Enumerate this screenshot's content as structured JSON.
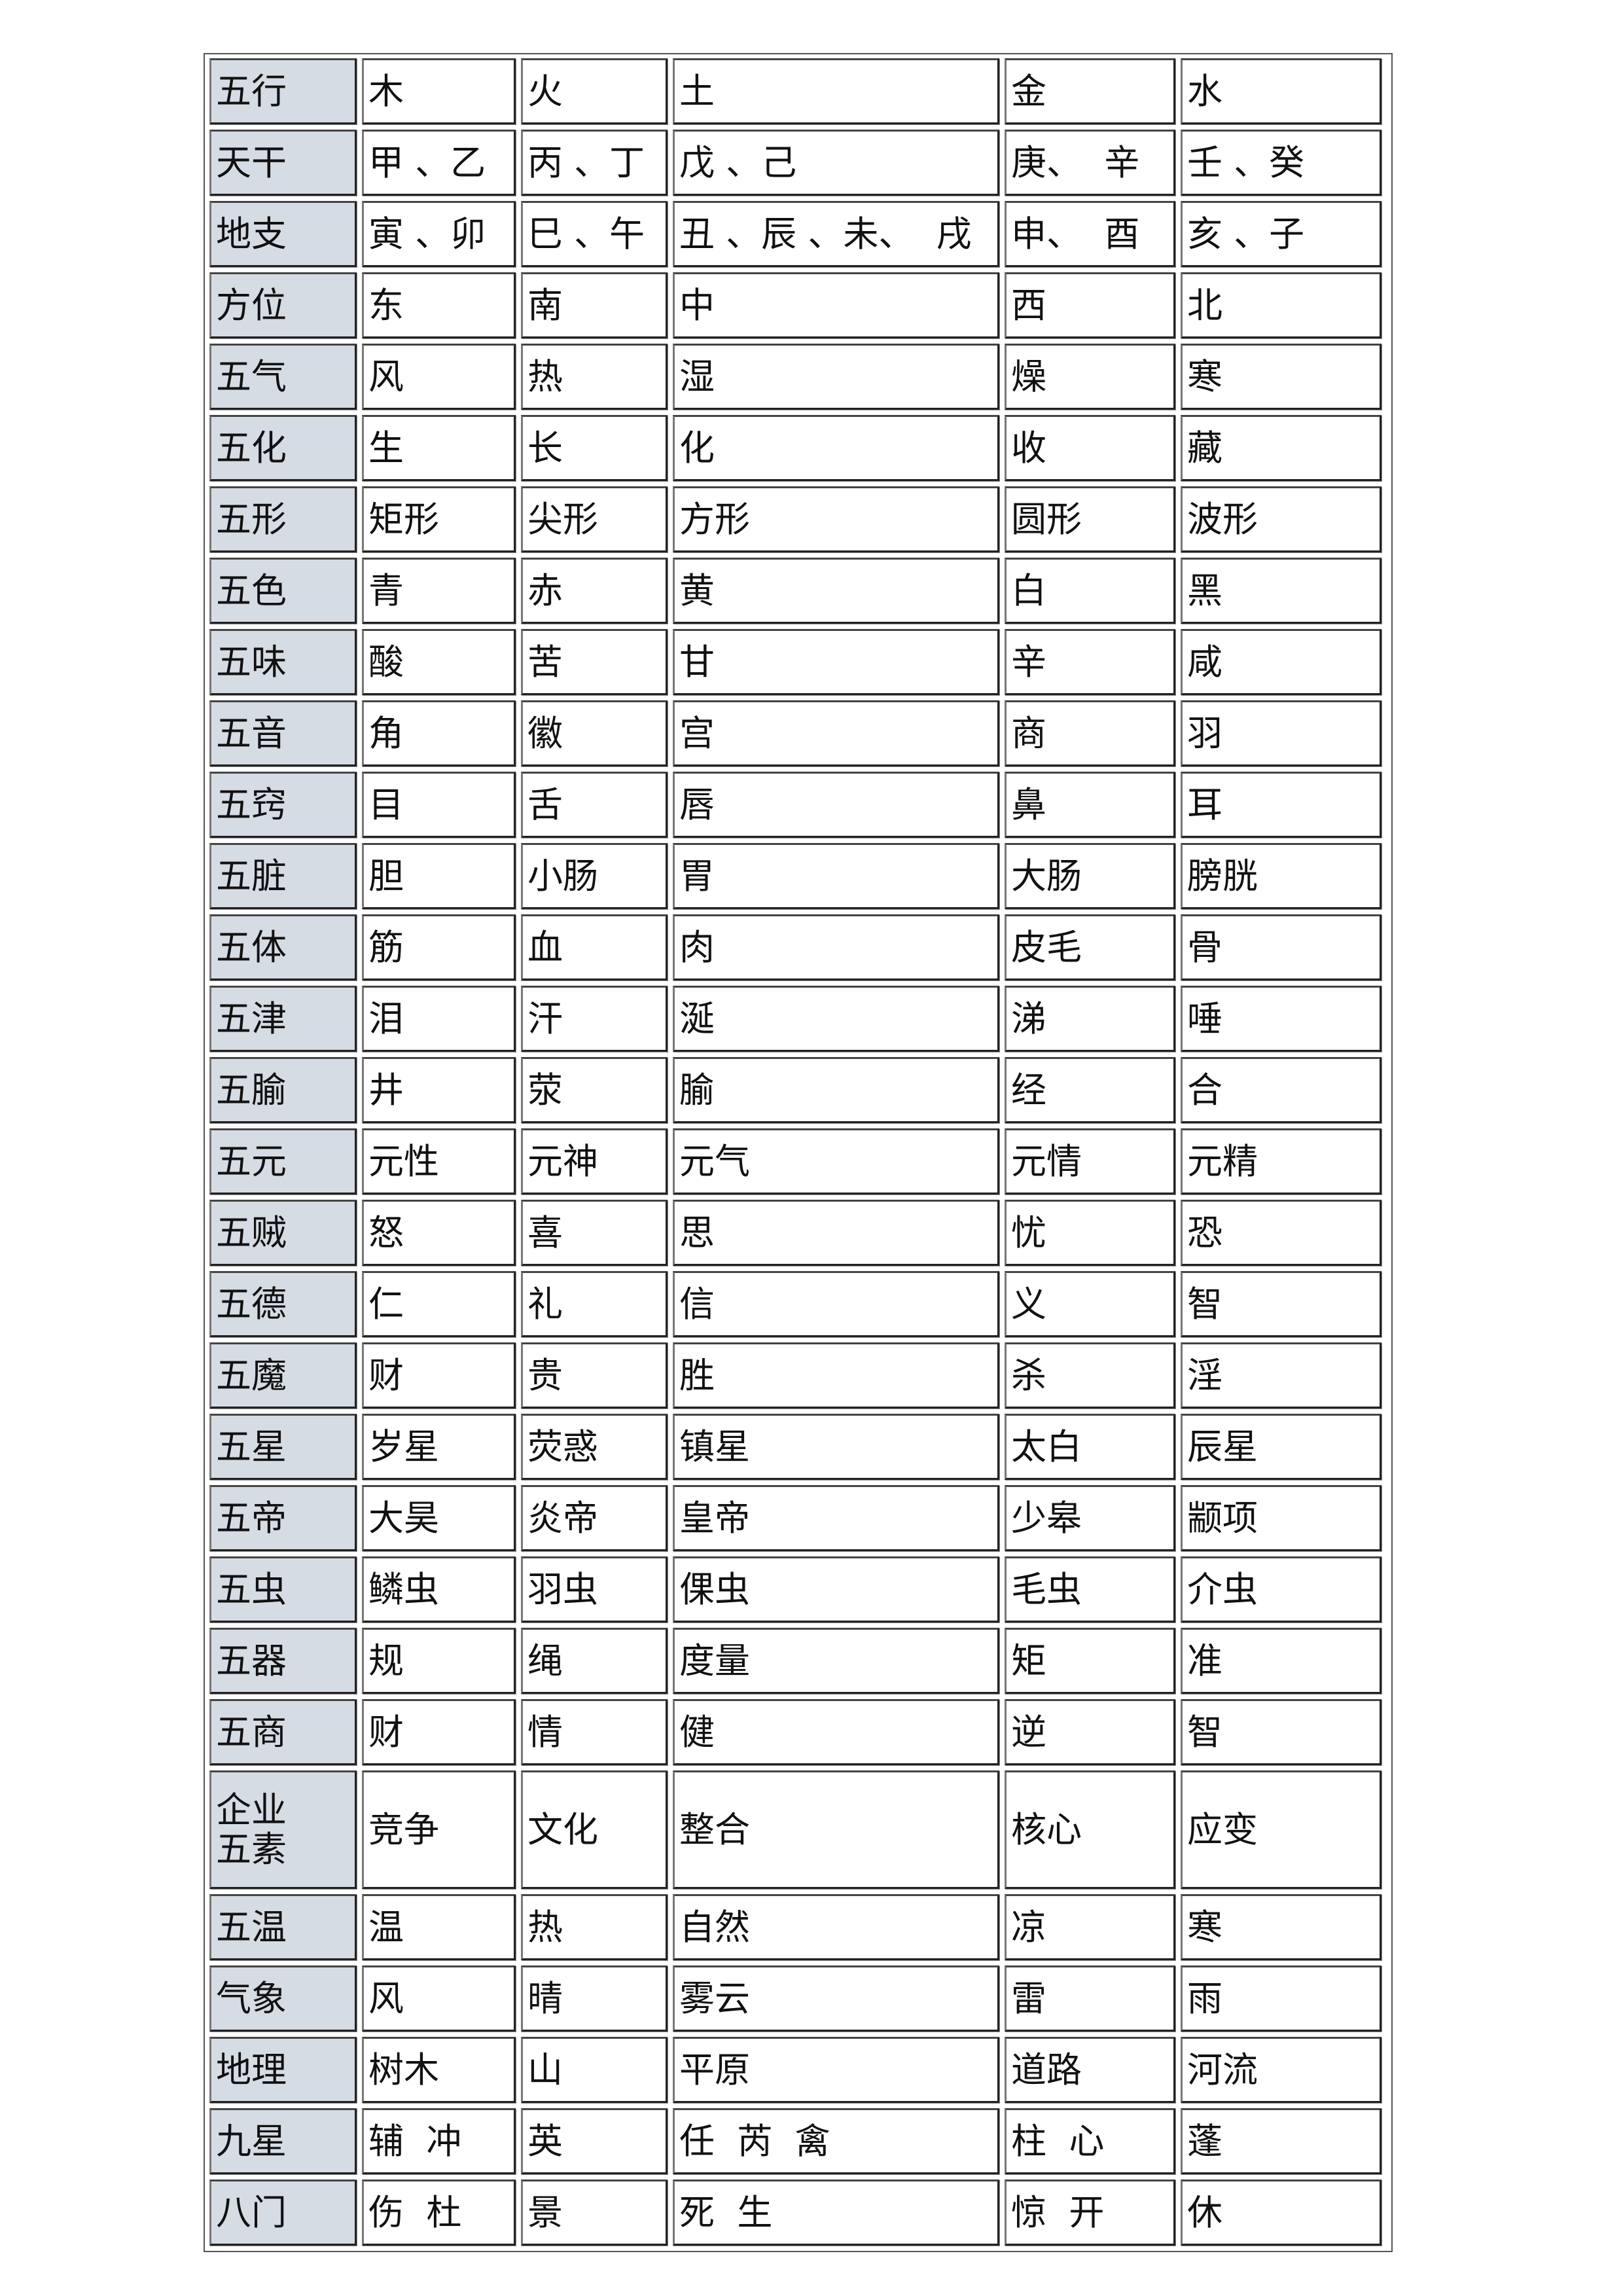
{
  "table": {
    "label_color": "#d6dce4",
    "rows": [
      {
        "label": "五行",
        "cells": [
          "木",
          "火",
          "土",
          "金",
          "水"
        ]
      },
      {
        "label": "天干",
        "cells": [
          "甲 、乙",
          "丙 、丁",
          "戊 、己",
          "庚、  辛",
          "壬 、癸"
        ]
      },
      {
        "label": "地支",
        "cells": [
          "寅 、卯",
          "巳 、午",
          "丑 、辰 、未、  戌",
          "申、  酉",
          "亥 、子"
        ]
      },
      {
        "label": "方位",
        "cells": [
          "东",
          "南",
          "中",
          "西",
          "北"
        ]
      },
      {
        "label": "五气",
        "cells": [
          "风",
          "热",
          "湿",
          "燥",
          "寒"
        ]
      },
      {
        "label": "五化",
        "cells": [
          "生",
          "长",
          "化",
          "收",
          "藏"
        ]
      },
      {
        "label": "五形",
        "cells": [
          "矩形",
          "尖形",
          "方形",
          "圆形",
          "波形"
        ]
      },
      {
        "label": "五色",
        "cells": [
          "青",
          "赤",
          "黄",
          "白",
          "黑"
        ]
      },
      {
        "label": "五味",
        "cells": [
          "酸",
          "苦",
          "甘",
          "辛",
          "咸"
        ]
      },
      {
        "label": "五音",
        "cells": [
          "角",
          "徽",
          "宫",
          "商",
          "羽"
        ]
      },
      {
        "label": "五窍",
        "cells": [
          "目",
          "舌",
          "唇",
          "鼻",
          "耳"
        ]
      },
      {
        "label": "五脏",
        "cells": [
          "胆",
          "小肠",
          "胃",
          "大肠",
          "膀胱"
        ]
      },
      {
        "label": "五体",
        "cells": [
          "筋",
          "血",
          "肉",
          "皮毛",
          "骨"
        ]
      },
      {
        "label": "五津",
        "cells": [
          "泪",
          "汗",
          "涎",
          "涕",
          "唾"
        ]
      },
      {
        "label": "五腧",
        "cells": [
          "井",
          "荥",
          "腧",
          "经",
          "合"
        ]
      },
      {
        "label": "五元",
        "cells": [
          "元性",
          "元神",
          "元气",
          "元情",
          "元精"
        ]
      },
      {
        "label": "五贼",
        "cells": [
          "怒",
          "喜",
          "思",
          "忧",
          "恐"
        ]
      },
      {
        "label": "五德",
        "cells": [
          "仁",
          "礼",
          "信",
          "义",
          "智"
        ]
      },
      {
        "label": "五魔",
        "cells": [
          "财",
          "贵",
          "胜",
          "杀",
          "淫"
        ]
      },
      {
        "label": "五星",
        "cells": [
          "岁星",
          "荧惑",
          "镇星",
          "太白",
          "辰星"
        ]
      },
      {
        "label": "五帝",
        "cells": [
          "大昊",
          "炎帝",
          "皇帝",
          "少皋",
          "颛项"
        ]
      },
      {
        "label": "五虫",
        "cells": [
          "鳞虫",
          "羽虫",
          "倮虫",
          "毛虫",
          "介虫"
        ]
      },
      {
        "label": "五器",
        "cells": [
          "规",
          "绳",
          "度量",
          "矩",
          "准"
        ]
      },
      {
        "label": "五商",
        "cells": [
          "财",
          "情",
          "健",
          "逆",
          "智"
        ]
      },
      {
        "label": "企业\n五素",
        "cells": [
          "竞争",
          "文化",
          "整合",
          "核心",
          "应变"
        ]
      },
      {
        "label": "五温",
        "cells": [
          "温",
          "热",
          "自然",
          "凉",
          "寒"
        ]
      },
      {
        "label": "气象",
        "cells": [
          "风",
          "晴",
          "雾云",
          "雷",
          "雨"
        ]
      },
      {
        "label": "地理",
        "cells": [
          "树木",
          "山",
          "平原",
          "道路",
          "河流"
        ]
      },
      {
        "label": "九星",
        "cells": [
          "辅  冲",
          "英",
          "任  芮  禽",
          "柱  心",
          "蓬"
        ]
      },
      {
        "label": "八门",
        "cells": [
          "伤  杜",
          "景",
          "死  生",
          "惊  开",
          "休"
        ]
      }
    ]
  }
}
